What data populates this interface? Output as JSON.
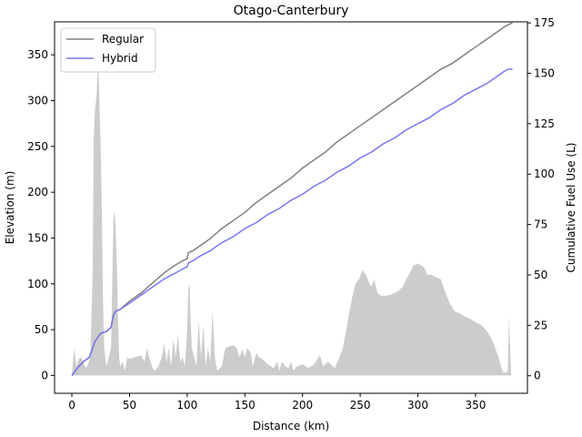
{
  "chart_data": {
    "type": "line",
    "title": "Otago-Canterbury",
    "xlabel": "Distance (km)",
    "ylabel": "Elevation (m)",
    "y2label": "Cumulative Fuel Use (L)",
    "xlim": [
      -15,
      395
    ],
    "ylim": [
      -19.5,
      386
    ],
    "y2lim": [
      -8.7,
      175.5
    ],
    "x_ticks": [
      0,
      50,
      100,
      150,
      200,
      250,
      300,
      350
    ],
    "y_ticks": [
      0,
      50,
      100,
      150,
      200,
      250,
      300,
      350
    ],
    "y2_ticks": [
      0,
      25,
      50,
      75,
      100,
      125,
      150,
      175
    ],
    "legend_position": "top-left",
    "grid": false,
    "elevation": {
      "name": "Elevation",
      "color": "#cccccc",
      "points": [
        [
          0,
          0
        ],
        [
          2,
          30
        ],
        [
          4,
          10
        ],
        [
          6,
          18
        ],
        [
          8,
          20
        ],
        [
          10,
          14
        ],
        [
          12,
          8
        ],
        [
          14,
          12
        ],
        [
          16,
          20
        ],
        [
          18,
          110
        ],
        [
          19,
          260
        ],
        [
          20,
          290
        ],
        [
          21,
          300
        ],
        [
          22,
          320
        ],
        [
          23,
          350
        ],
        [
          24,
          290
        ],
        [
          25,
          250
        ],
        [
          26,
          180
        ],
        [
          27,
          80
        ],
        [
          28,
          30
        ],
        [
          30,
          10
        ],
        [
          32,
          20
        ],
        [
          34,
          30
        ],
        [
          35,
          100
        ],
        [
          36,
          170
        ],
        [
          37,
          180
        ],
        [
          38,
          160
        ],
        [
          39,
          120
        ],
        [
          40,
          60
        ],
        [
          41,
          20
        ],
        [
          42,
          10
        ],
        [
          44,
          15
        ],
        [
          46,
          5
        ],
        [
          48,
          20
        ],
        [
          50,
          18
        ],
        [
          55,
          20
        ],
        [
          60,
          22
        ],
        [
          63,
          15
        ],
        [
          65,
          30
        ],
        [
          67,
          20
        ],
        [
          70,
          8
        ],
        [
          72,
          5
        ],
        [
          75,
          10
        ],
        [
          78,
          20
        ],
        [
          80,
          35
        ],
        [
          82,
          15
        ],
        [
          84,
          30
        ],
        [
          86,
          10
        ],
        [
          88,
          40
        ],
        [
          90,
          20
        ],
        [
          92,
          45
        ],
        [
          94,
          15
        ],
        [
          96,
          20
        ],
        [
          98,
          10
        ],
        [
          100,
          50
        ],
        [
          101,
          95
        ],
        [
          102,
          100
        ],
        [
          103,
          60
        ],
        [
          104,
          30
        ],
        [
          106,
          20
        ],
        [
          108,
          10
        ],
        [
          110,
          60
        ],
        [
          112,
          20
        ],
        [
          114,
          55
        ],
        [
          116,
          10
        ],
        [
          118,
          30
        ],
        [
          120,
          15
        ],
        [
          122,
          70
        ],
        [
          124,
          20
        ],
        [
          126,
          5
        ],
        [
          130,
          10
        ],
        [
          133,
          30
        ],
        [
          137,
          32
        ],
        [
          140,
          33
        ],
        [
          143,
          30
        ],
        [
          145,
          20
        ],
        [
          148,
          28
        ],
        [
          150,
          20
        ],
        [
          152,
          30
        ],
        [
          155,
          25
        ],
        [
          157,
          10
        ],
        [
          160,
          25
        ],
        [
          162,
          20
        ],
        [
          165,
          18
        ],
        [
          170,
          12
        ],
        [
          175,
          8
        ],
        [
          178,
          15
        ],
        [
          180,
          5
        ],
        [
          182,
          15
        ],
        [
          185,
          10
        ],
        [
          188,
          8
        ],
        [
          190,
          15
        ],
        [
          192,
          5
        ],
        [
          195,
          10
        ],
        [
          200,
          12
        ],
        [
          205,
          8
        ],
        [
          210,
          12
        ],
        [
          215,
          22
        ],
        [
          218,
          10
        ],
        [
          222,
          15
        ],
        [
          228,
          8
        ],
        [
          232,
          20
        ],
        [
          235,
          30
        ],
        [
          238,
          50
        ],
        [
          240,
          65
        ],
        [
          243,
          85
        ],
        [
          246,
          100
        ],
        [
          249,
          105
        ],
        [
          252,
          115
        ],
        [
          255,
          110
        ],
        [
          258,
          100
        ],
        [
          260,
          97
        ],
        [
          262,
          105
        ],
        [
          265,
          90
        ],
        [
          268,
          87
        ],
        [
          272,
          87
        ],
        [
          276,
          88
        ],
        [
          280,
          90
        ],
        [
          283,
          92
        ],
        [
          287,
          97
        ],
        [
          290,
          105
        ],
        [
          293,
          112
        ],
        [
          296,
          120
        ],
        [
          300,
          122
        ],
        [
          303,
          120
        ],
        [
          306,
          117
        ],
        [
          308,
          110
        ],
        [
          312,
          110
        ],
        [
          316,
          107
        ],
        [
          320,
          105
        ],
        [
          324,
          90
        ],
        [
          328,
          78
        ],
        [
          332,
          70
        ],
        [
          336,
          68
        ],
        [
          340,
          65
        ],
        [
          345,
          62
        ],
        [
          350,
          58
        ],
        [
          355,
          55
        ],
        [
          360,
          48
        ],
        [
          364,
          40
        ],
        [
          367,
          30
        ],
        [
          370,
          20
        ],
        [
          372,
          10
        ],
        [
          374,
          3
        ],
        [
          376,
          3
        ],
        [
          378,
          5
        ],
        [
          379,
          65
        ],
        [
          380,
          30
        ],
        [
          381,
          0
        ]
      ]
    },
    "series": [
      {
        "name": "Regular",
        "color": "#808080",
        "axis": "right",
        "points": [
          [
            0,
            0
          ],
          [
            5,
            4
          ],
          [
            10,
            7
          ],
          [
            15,
            9
          ],
          [
            17,
            12
          ],
          [
            20,
            17
          ],
          [
            25,
            21
          ],
          [
            30,
            22
          ],
          [
            34,
            24
          ],
          [
            36,
            30
          ],
          [
            38,
            32
          ],
          [
            42,
            33
          ],
          [
            50,
            37
          ],
          [
            60,
            41
          ],
          [
            70,
            46
          ],
          [
            80,
            51
          ],
          [
            90,
            55
          ],
          [
            96,
            57
          ],
          [
            100,
            58
          ],
          [
            101,
            61
          ],
          [
            105,
            62
          ],
          [
            110,
            64
          ],
          [
            120,
            68
          ],
          [
            130,
            73
          ],
          [
            140,
            77
          ],
          [
            150,
            81
          ],
          [
            160,
            86
          ],
          [
            170,
            90
          ],
          [
            180,
            94
          ],
          [
            190,
            98
          ],
          [
            200,
            103
          ],
          [
            210,
            107
          ],
          [
            220,
            111
          ],
          [
            230,
            116
          ],
          [
            240,
            120
          ],
          [
            250,
            124
          ],
          [
            260,
            128
          ],
          [
            270,
            132
          ],
          [
            280,
            136
          ],
          [
            290,
            140
          ],
          [
            300,
            144
          ],
          [
            310,
            148
          ],
          [
            320,
            152
          ],
          [
            330,
            155
          ],
          [
            340,
            159
          ],
          [
            350,
            163
          ],
          [
            360,
            167
          ],
          [
            370,
            171
          ],
          [
            375,
            173
          ],
          [
            378,
            174
          ],
          [
            382,
            175
          ]
        ]
      },
      {
        "name": "Hybrid",
        "color": "#7777ee",
        "axis": "right",
        "points": [
          [
            0,
            0
          ],
          [
            5,
            4
          ],
          [
            10,
            7
          ],
          [
            15,
            9
          ],
          [
            17,
            12
          ],
          [
            20,
            17
          ],
          [
            25,
            21
          ],
          [
            30,
            22
          ],
          [
            34,
            24
          ],
          [
            36,
            30
          ],
          [
            38,
            32
          ],
          [
            42,
            33
          ],
          [
            50,
            36
          ],
          [
            60,
            40
          ],
          [
            70,
            44
          ],
          [
            80,
            48
          ],
          [
            90,
            51
          ],
          [
            96,
            53
          ],
          [
            100,
            54
          ],
          [
            101,
            56
          ],
          [
            105,
            57
          ],
          [
            110,
            59
          ],
          [
            120,
            62
          ],
          [
            130,
            66
          ],
          [
            140,
            69
          ],
          [
            150,
            73
          ],
          [
            160,
            76
          ],
          [
            170,
            80
          ],
          [
            180,
            83
          ],
          [
            190,
            87
          ],
          [
            200,
            90
          ],
          [
            210,
            94
          ],
          [
            220,
            97
          ],
          [
            230,
            101
          ],
          [
            240,
            104
          ],
          [
            250,
            108
          ],
          [
            260,
            111
          ],
          [
            270,
            115
          ],
          [
            280,
            118
          ],
          [
            290,
            122
          ],
          [
            300,
            125
          ],
          [
            310,
            128
          ],
          [
            320,
            132
          ],
          [
            330,
            135
          ],
          [
            340,
            139
          ],
          [
            350,
            142
          ],
          [
            360,
            145
          ],
          [
            370,
            149
          ],
          [
            375,
            151
          ],
          [
            378,
            152
          ],
          [
            382,
            152
          ]
        ]
      }
    ]
  }
}
